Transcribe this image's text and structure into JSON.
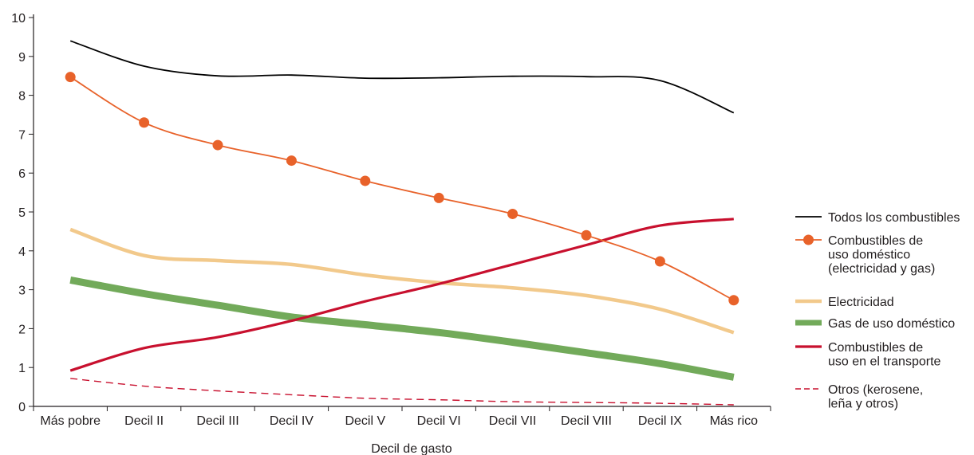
{
  "chart_data": {
    "type": "line",
    "title": "",
    "xlabel": "Decil de gasto",
    "ylabel": "",
    "ylim": [
      0,
      10
    ],
    "yticks": [
      0,
      1,
      2,
      3,
      4,
      5,
      6,
      7,
      8,
      9,
      10
    ],
    "categories": [
      "Más pobre",
      "Decil II",
      "Decil III",
      "Decil IV",
      "Decil V",
      "Decil VI",
      "Decil VII",
      "Decil VIII",
      "Decil IX",
      "Más rico"
    ],
    "grid": false,
    "legend_position": "right",
    "series": [
      {
        "key": "todos",
        "name": "Todos los combustibles",
        "legend_lines": [
          "Todos los combustibles"
        ],
        "color": "#000000",
        "style": "thin",
        "markers": false,
        "values": [
          9.4,
          8.75,
          8.5,
          8.52,
          8.44,
          8.45,
          8.49,
          8.48,
          8.38,
          7.55
        ]
      },
      {
        "key": "domestico",
        "name": "Combustibles de uso doméstico (electricidad y gas)",
        "legend_lines": [
          "Combustibles de",
          "uso doméstico",
          "(electricidad y gas)"
        ],
        "color": "#e8622a",
        "style": "thin",
        "markers": true,
        "values": [
          8.47,
          7.3,
          6.72,
          6.32,
          5.8,
          5.36,
          4.95,
          4.4,
          3.73,
          2.73
        ]
      },
      {
        "key": "electricidad",
        "name": "Electricidad",
        "legend_lines": [
          "Electricidad"
        ],
        "color": "#f2c98b",
        "style": "medium",
        "markers": false,
        "values": [
          4.55,
          3.88,
          3.75,
          3.65,
          3.38,
          3.18,
          3.05,
          2.85,
          2.5,
          1.9
        ]
      },
      {
        "key": "gas",
        "name": "Gas de uso doméstico",
        "legend_lines": [
          "Gas de uso doméstico"
        ],
        "color": "#72aa5a",
        "style": "thick",
        "markers": false,
        "values": [
          3.25,
          2.9,
          2.6,
          2.3,
          2.1,
          1.9,
          1.65,
          1.38,
          1.1,
          0.75
        ]
      },
      {
        "key": "transporte",
        "name": "Combustibles de uso en el transporte",
        "legend_lines": [
          "Combustibles de",
          "uso en el transporte"
        ],
        "color": "#c8102e",
        "style": "medium2",
        "markers": false,
        "values": [
          0.92,
          1.5,
          1.78,
          2.2,
          2.7,
          3.15,
          3.65,
          4.15,
          4.65,
          4.82
        ]
      },
      {
        "key": "otros",
        "name": "Otros (kerosene, leña y otros)",
        "legend_lines": [
          "Otros (kerosene,",
          "leña y otros)"
        ],
        "color": "#c8102e",
        "style": "dashed",
        "markers": false,
        "values": [
          0.72,
          0.52,
          0.4,
          0.3,
          0.21,
          0.17,
          0.12,
          0.1,
          0.08,
          0.04
        ]
      }
    ]
  }
}
